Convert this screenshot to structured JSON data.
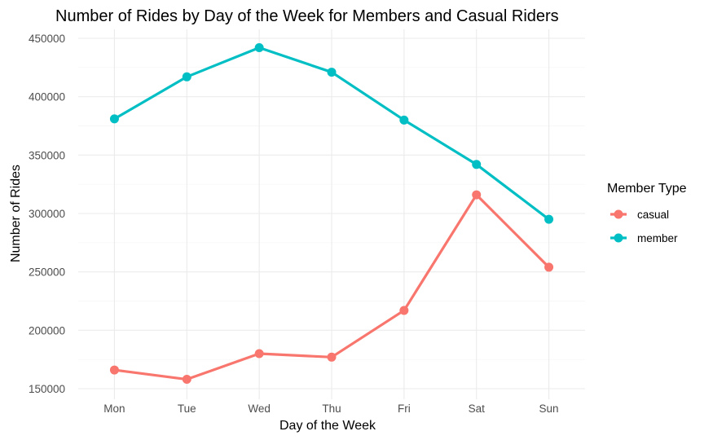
{
  "chart_data": {
    "type": "line",
    "title": "Number of Rides by Day of the Week for Members and Casual Riders",
    "xlabel": "Day of the Week",
    "ylabel": "Number of Rides",
    "categories": [
      "Mon",
      "Tue",
      "Wed",
      "Thu",
      "Fri",
      "Sat",
      "Sun"
    ],
    "ylim": [
      150000,
      450000
    ],
    "yticks": [
      "150000",
      "200000",
      "250000",
      "300000",
      "350000",
      "400000",
      "450000"
    ],
    "grid": true,
    "legend": {
      "title": "Member Type",
      "position": "right"
    },
    "series": [
      {
        "name": "casual",
        "color": "#F8766D",
        "values": [
          166000,
          158000,
          180000,
          177000,
          217000,
          316000,
          254000
        ]
      },
      {
        "name": "member",
        "color": "#00BFC4",
        "values": [
          381000,
          417000,
          442000,
          421000,
          380000,
          342000,
          295000
        ]
      }
    ]
  }
}
